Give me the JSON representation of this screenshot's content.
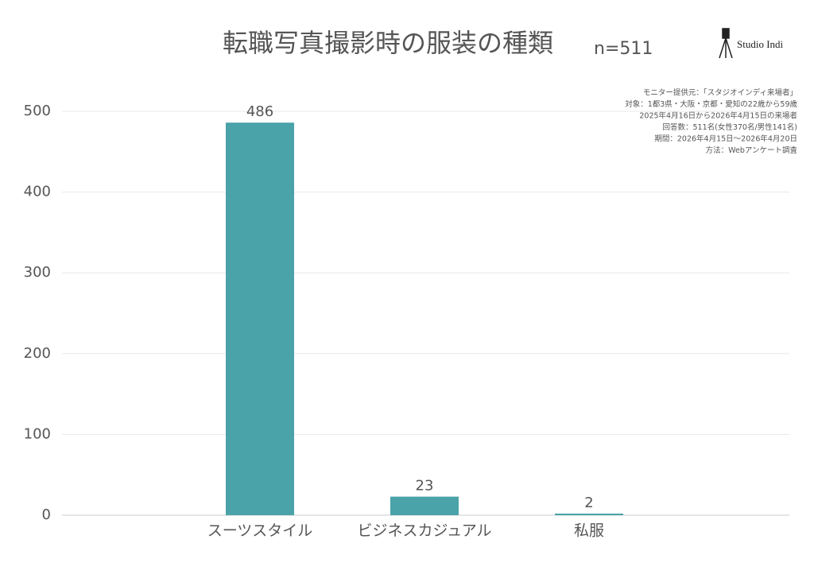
{
  "chart_data": {
    "type": "bar",
    "title": "転職写真撮影時の服装の種類",
    "subtitle": "n=511",
    "brand": "Studio Indi",
    "notes": [
      "モニター提供元：「スタジオインディ来場者」",
      "対象：1都3県・大阪・京都・愛知の22歳から59歳",
      "2025年4月16日から2026年4月15日の来場者",
      "回答数：511名(女性370名/男性141名)",
      "期間：2026年4月15日〜2026年4月20日",
      "方法：Webアンケート調査"
    ],
    "categories": [
      "スーツスタイル",
      "ビジネスカジュアル",
      "私服"
    ],
    "values": [
      486,
      23,
      2
    ],
    "color": "#4aa3a8",
    "ylim": [
      0,
      500
    ],
    "yticks": [
      0,
      100,
      200,
      300,
      400,
      500
    ],
    "grid": true
  }
}
